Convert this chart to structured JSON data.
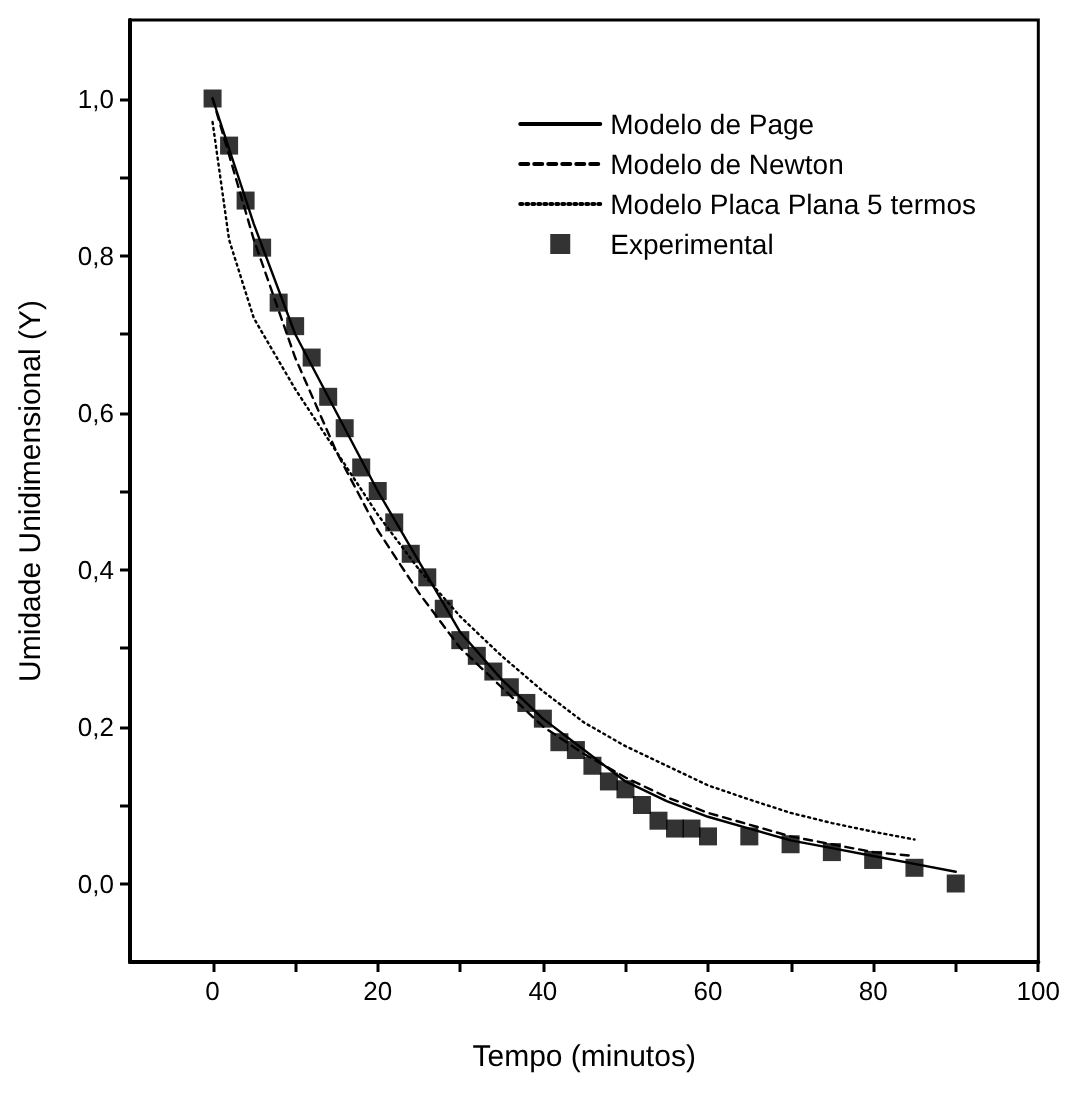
{
  "chart_data": {
    "type": "line",
    "xlabel": "Tempo (minutos)",
    "ylabel": "Umidade Unidimensional (Y)",
    "xlim": [
      -10,
      100
    ],
    "ylim": [
      -0.1,
      1.1
    ],
    "xticks": [
      0,
      {
        "value": 10,
        "label": null
      },
      20,
      {
        "value": 30,
        "label": null
      },
      40,
      {
        "value": 50,
        "label": null
      },
      60,
      {
        "value": 70,
        "label": null
      },
      80,
      {
        "value": 90,
        "label": null
      },
      100
    ],
    "yticks": [
      {
        "value": 0,
        "label": "0,0"
      },
      {
        "value": 0.1,
        "label": null
      },
      {
        "value": 0.2,
        "label": "0,2"
      },
      {
        "value": 0.3,
        "label": null
      },
      {
        "value": 0.4,
        "label": "0,4"
      },
      {
        "value": 0.5,
        "label": null
      },
      {
        "value": 0.6,
        "label": "0,6"
      },
      {
        "value": 0.7,
        "label": null
      },
      {
        "value": 0.8,
        "label": "0,8"
      },
      {
        "value": 0.9,
        "label": null
      },
      {
        "value": 1.0,
        "label": "1,0"
      }
    ],
    "grid": false,
    "legend": "top right",
    "series": [
      {
        "name": "Modelo de Page",
        "line_style": "solid",
        "marker": "none",
        "color": "#000000",
        "x": [
          0,
          5,
          10,
          15,
          20,
          25,
          30,
          35,
          40,
          45,
          50,
          55,
          60,
          65,
          70,
          75,
          80,
          85,
          90
        ],
        "values": [
          1.0,
          0.84,
          0.7,
          0.6,
          0.5,
          0.41,
          0.32,
          0.26,
          0.21,
          0.17,
          0.13,
          0.105,
          0.085,
          0.07,
          0.055,
          0.045,
          0.035,
          0.025,
          0.015
        ]
      },
      {
        "name": "Modelo de Newton",
        "line_style": "dashed",
        "marker": "none",
        "color": "#000000",
        "x": [
          0,
          5,
          10,
          15,
          20,
          25,
          30,
          35,
          40,
          45,
          50,
          55,
          60,
          65,
          70,
          75,
          80,
          85
        ],
        "values": [
          1.0,
          0.82,
          0.67,
          0.55,
          0.45,
          0.37,
          0.3,
          0.25,
          0.2,
          0.165,
          0.135,
          0.11,
          0.09,
          0.075,
          0.06,
          0.05,
          0.04,
          0.035
        ]
      },
      {
        "name": "Modelo Placa Plana 5 termos",
        "line_style": "dotted",
        "marker": "none",
        "color": "#000000",
        "x": [
          0,
          2,
          5,
          10,
          15,
          20,
          25,
          30,
          35,
          40,
          45,
          50,
          55,
          60,
          65,
          70,
          75,
          80,
          85
        ],
        "values": [
          0.97,
          0.82,
          0.72,
          0.63,
          0.55,
          0.47,
          0.4,
          0.34,
          0.29,
          0.245,
          0.205,
          0.175,
          0.15,
          0.125,
          0.107,
          0.09,
          0.077,
          0.066,
          0.056
        ]
      },
      {
        "name": "Experimental",
        "type": "scatter",
        "marker": "square",
        "color": "#000000",
        "x": [
          0,
          2,
          4,
          6,
          8,
          10,
          12,
          14,
          16,
          18,
          20,
          22,
          24,
          26,
          28,
          30,
          32,
          34,
          36,
          38,
          40,
          42,
          44,
          46,
          48,
          50,
          52,
          54,
          56,
          58,
          60,
          65,
          70,
          75,
          80,
          85,
          90
        ],
        "values": [
          1.0,
          0.94,
          0.87,
          0.81,
          0.74,
          0.71,
          0.67,
          0.62,
          0.58,
          0.53,
          0.5,
          0.46,
          0.42,
          0.39,
          0.35,
          0.31,
          0.29,
          0.27,
          0.25,
          0.23,
          0.21,
          0.18,
          0.17,
          0.15,
          0.13,
          0.12,
          0.1,
          0.08,
          0.07,
          0.07,
          0.06,
          0.06,
          0.05,
          0.04,
          0.03,
          0.02,
          0.0
        ]
      }
    ]
  }
}
